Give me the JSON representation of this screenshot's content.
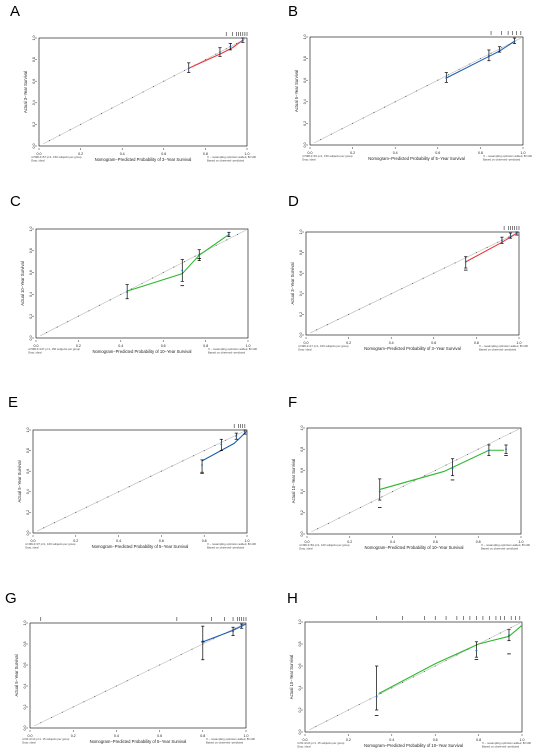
{
  "chart_data": [
    {
      "id": "A",
      "type": "line",
      "panel_label": "A",
      "xlabel": "Nomogram−Predicted Probability of 3−Year Survival",
      "ylabel": "Actual 3−Year Survival",
      "xlim": [
        0,
        1
      ],
      "ylim": [
        0,
        1
      ],
      "xticks": [
        "0.0",
        "0.2",
        "0.4",
        "0.6",
        "0.8",
        "1.0"
      ],
      "yticks": [
        "0.0",
        "0.2",
        "0.4",
        "0.6",
        "0.8",
        "1.0"
      ],
      "line_color": "#e8393b",
      "curve": {
        "x": [
          0.72,
          0.88,
          0.93,
          0.98
        ],
        "y": [
          0.72,
          0.86,
          0.91,
          0.98
        ]
      },
      "points": [
        {
          "x": 0.72,
          "y": 0.72,
          "lo": 0.68,
          "hi": 0.77
        },
        {
          "x": 0.87,
          "y": 0.87,
          "lo": 0.83,
          "hi": 0.91
        },
        {
          "x": 0.92,
          "y": 0.92,
          "lo": 0.89,
          "hi": 0.95
        },
        {
          "x": 0.98,
          "y": 0.98,
          "lo": 0.96,
          "hi": 1.0
        }
      ],
      "crosses": [],
      "rug": [
        0.9,
        0.93,
        0.95,
        0.96,
        0.97,
        0.98,
        0.99,
        1.0
      ],
      "note_left": [
        "n=598 d=57 p=1, 150 subjects per group",
        "Gray: ideal"
      ],
      "note_right": [
        "X − resampling optimism added, B=100",
        "Based on observed−predicted"
      ]
    },
    {
      "id": "B",
      "type": "line",
      "panel_label": "B",
      "xlabel": "Nomogram−Predicted Probability of 5−Year Survival",
      "ylabel": "Actual 5−Year Survival",
      "xlim": [
        0,
        1
      ],
      "ylim": [
        0,
        1
      ],
      "xticks": [
        "0.0",
        "0.2",
        "0.4",
        "0.6",
        "0.8",
        "1.0"
      ],
      "yticks": [
        "0.0",
        "0.2",
        "0.4",
        "0.6",
        "0.8",
        "1.0"
      ],
      "line_color": "#1f5fb4",
      "curve": {
        "x": [
          0.64,
          0.84,
          0.89,
          0.96
        ],
        "y": [
          0.62,
          0.82,
          0.87,
          0.96
        ]
      },
      "points": [
        {
          "x": 0.64,
          "y": 0.62,
          "lo": 0.58,
          "hi": 0.67
        },
        {
          "x": 0.84,
          "y": 0.83,
          "lo": 0.78,
          "hi": 0.88
        },
        {
          "x": 0.89,
          "y": 0.88,
          "lo": 0.86,
          "hi": 0.91
        },
        {
          "x": 0.96,
          "y": 0.96,
          "lo": 0.94,
          "hi": 0.99
        }
      ],
      "crosses": [],
      "rug": [
        0.85,
        0.9,
        0.93,
        0.95,
        0.97,
        0.99
      ],
      "note_left": [
        "n=598 d=91 p=1, 150 subjects per group",
        "Gray: ideal"
      ],
      "note_right": [
        "X − resampling optimism added, B=100",
        "Based on observed−predicted"
      ]
    },
    {
      "id": "C",
      "type": "line",
      "panel_label": "C",
      "xlabel": "Nomogram−Predicted Probability of 10−Year Survival",
      "ylabel": "Actual 10−Year Survival",
      "xlim": [
        0,
        1
      ],
      "ylim": [
        0,
        1
      ],
      "xticks": [
        "0.0",
        "0.2",
        "0.4",
        "0.6",
        "0.8",
        "1.0"
      ],
      "yticks": [
        "0.0",
        "0.2",
        "0.4",
        "0.6",
        "0.8",
        "1.0"
      ],
      "line_color": "#2eb82e",
      "curve": {
        "x": [
          0.43,
          0.69,
          0.77,
          0.91
        ],
        "y": [
          0.43,
          0.59,
          0.76,
          0.95
        ]
      },
      "points": [
        {
          "x": 0.43,
          "y": 0.42,
          "lo": 0.36,
          "hi": 0.49
        },
        {
          "x": 0.69,
          "y": 0.62,
          "lo": 0.52,
          "hi": 0.72
        },
        {
          "x": 0.77,
          "y": 0.76,
          "lo": 0.71,
          "hi": 0.81
        },
        {
          "x": 0.91,
          "y": 0.95,
          "lo": 0.93,
          "hi": 0.97
        }
      ],
      "crosses": [
        {
          "x": 0.69,
          "y": 0.48
        },
        {
          "x": 0.77,
          "y": 0.73
        }
      ],
      "rug": [],
      "note_left": [
        "n=598 d=137 p=1, 150 subjects per group",
        "Gray: ideal"
      ],
      "note_right": [
        "X − resampling optimism added, B=100",
        "Based on observed−predicted"
      ]
    },
    {
      "id": "D",
      "type": "line",
      "panel_label": "D",
      "xlabel": "Nomogram−Predicted Probability of 3−Year Survival",
      "ylabel": "Actual 3−Year Survival",
      "xlim": [
        0,
        1
      ],
      "ylim": [
        0,
        1
      ],
      "xticks": [
        "0.0",
        "0.2",
        "0.4",
        "0.6",
        "0.8",
        "1.0"
      ],
      "yticks": [
        "0.0",
        "0.2",
        "0.4",
        "0.6",
        "0.8",
        "1.0"
      ],
      "line_color": "#e8393b",
      "curve": {
        "x": [
          0.75,
          0.92,
          0.96,
          0.99
        ],
        "y": [
          0.71,
          0.9,
          0.95,
          0.99
        ]
      },
      "points": [
        {
          "x": 0.75,
          "y": 0.71,
          "lo": 0.65,
          "hi": 0.76
        },
        {
          "x": 0.92,
          "y": 0.92,
          "lo": 0.89,
          "hi": 0.95
        },
        {
          "x": 0.96,
          "y": 0.96,
          "lo": 0.94,
          "hi": 0.99
        },
        {
          "x": 0.99,
          "y": 0.99,
          "lo": 0.97,
          "hi": 1.0
        }
      ],
      "crosses": [
        {
          "x": 0.75,
          "y": 0.63
        }
      ],
      "rug": [
        0.93,
        0.95,
        0.96,
        0.97,
        0.98,
        0.99,
        1.0
      ],
      "note_left": [
        "n=399 d=17 p=1, 100 subjects per group",
        "Gray: ideal"
      ],
      "note_right": [
        "X − resampling optimism added, B=100",
        "Based on observed−predicted"
      ]
    },
    {
      "id": "E",
      "type": "line",
      "panel_label": "E",
      "xlabel": "Nomogram−Predicted Probability of 5−Year Survival",
      "ylabel": "Actual 5−Year Survival",
      "xlim": [
        0,
        1
      ],
      "ylim": [
        0,
        1
      ],
      "xticks": [
        "0.0",
        "0.2",
        "0.4",
        "0.6",
        "0.8",
        "1.0"
      ],
      "yticks": [
        "0.0",
        "0.2",
        "0.4",
        "0.6",
        "0.8",
        "1.0"
      ],
      "line_color": "#1f5fb4",
      "curve": {
        "x": [
          0.79,
          0.94,
          0.97,
          1.0
        ],
        "y": [
          0.7,
          0.87,
          0.93,
          0.99
        ]
      },
      "points": [
        {
          "x": 0.79,
          "y": 0.66,
          "lo": 0.59,
          "hi": 0.71
        },
        {
          "x": 0.88,
          "y": 0.86,
          "lo": 0.8,
          "hi": 0.91
        },
        {
          "x": 0.95,
          "y": 0.94,
          "lo": 0.91,
          "hi": 0.97
        },
        {
          "x": 0.99,
          "y": 0.98,
          "lo": 0.96,
          "hi": 1.0
        }
      ],
      "crosses": [
        {
          "x": 0.79,
          "y": 0.58
        }
      ],
      "rug": [
        0.94,
        0.96,
        0.97,
        0.98,
        0.99
      ],
      "note_left": [
        "n=399 d=37 p=1, 100 subjects per group",
        "Gray: ideal"
      ],
      "note_right": [
        "X − resampling optimism added, B=100",
        "Based on observed−predicted"
      ]
    },
    {
      "id": "F",
      "type": "line",
      "panel_label": "F",
      "xlabel": "Nomogram−Predicted Probability of 10−Year Survival",
      "ylabel": "Actual 10−Year Survival",
      "xlim": [
        0,
        1
      ],
      "ylim": [
        0,
        1
      ],
      "xticks": [
        "0.0",
        "0.2",
        "0.4",
        "0.6",
        "0.8",
        "1.0"
      ],
      "yticks": [
        "0.0",
        "0.2",
        "0.4",
        "0.6",
        "0.8",
        "1.0"
      ],
      "line_color": "#2eb82e",
      "curve": {
        "x": [
          0.34,
          0.64,
          0.85,
          0.92
        ],
        "y": [
          0.42,
          0.59,
          0.79,
          0.79
        ]
      },
      "points": [
        {
          "x": 0.34,
          "y": 0.4,
          "lo": 0.32,
          "hi": 0.52
        },
        {
          "x": 0.68,
          "y": 0.62,
          "lo": 0.55,
          "hi": 0.71
        },
        {
          "x": 0.85,
          "y": 0.79,
          "lo": 0.74,
          "hi": 0.84
        },
        {
          "x": 0.93,
          "y": 0.8,
          "lo": 0.76,
          "hi": 0.84
        }
      ],
      "crosses": [
        {
          "x": 0.34,
          "y": 0.25
        },
        {
          "x": 0.68,
          "y": 0.51
        },
        {
          "x": 0.93,
          "y": 0.74
        }
      ],
      "rug": [],
      "note_left": [
        "n=399 d=81 p=1, 100 subjects per group",
        "Gray: ideal"
      ],
      "note_right": [
        "X − resampling optimism added, B=100",
        "Based on observed−predicted"
      ]
    },
    {
      "id": "G",
      "type": "line",
      "panel_label": "G",
      "xlabel": "Nomogram−Predicted Probability of 5−Year Survival",
      "ylabel": "Actual 5−Year Survival",
      "xlim": [
        0,
        1
      ],
      "ylim": [
        0,
        1
      ],
      "xticks": [
        "0.0",
        "0.2",
        "0.4",
        "0.6",
        "0.8",
        "1.0"
      ],
      "yticks": [
        "0.0",
        "0.2",
        "0.4",
        "0.6",
        "0.8",
        "1.0"
      ],
      "line_color": "#1f5fb4",
      "curve": {
        "x": [
          0.8,
          0.94,
          0.98,
          1.0
        ],
        "y": [
          0.82,
          0.93,
          0.97,
          0.99
        ]
      },
      "points": [
        {
          "x": 0.8,
          "y": 0.83,
          "lo": 0.65,
          "hi": 0.97
        },
        {
          "x": 0.94,
          "y": 0.92,
          "lo": 0.88,
          "hi": 0.96
        },
        {
          "x": 0.98,
          "y": 0.97,
          "lo": 0.95,
          "hi": 0.99
        }
      ],
      "crosses": [
        {
          "x": 0.8,
          "y": 0.82
        }
      ],
      "rug": [
        0.05,
        0.68,
        0.84,
        0.9,
        0.94,
        0.96,
        0.97,
        0.98,
        0.99,
        1.0
      ],
      "note_left": [
        "n=60 d=14 p=1, 15 subjects per group",
        "Gray: ideal"
      ],
      "note_right": [
        "X − resampling optimism added, B=100",
        "Based on observed−predicted"
      ]
    },
    {
      "id": "H",
      "type": "line",
      "panel_label": "H",
      "xlabel": "Nomogram−Predicted Probability of 10−Year Survival",
      "ylabel": "Actual 10−Year Survival",
      "xlim": [
        0,
        1
      ],
      "ylim": [
        0,
        1
      ],
      "xticks": [
        "0.0",
        "0.2",
        "0.4",
        "0.6",
        "0.8",
        "1.0"
      ],
      "yticks": [
        "0.0",
        "0.2",
        "0.4",
        "0.6",
        "0.8",
        "1.0"
      ],
      "line_color": "#2eb82e",
      "curve": {
        "x": [
          0.34,
          0.6,
          0.8,
          0.94,
          1.0
        ],
        "y": [
          0.35,
          0.62,
          0.8,
          0.87,
          0.97
        ]
      },
      "points": [
        {
          "x": 0.33,
          "y": 0.32,
          "lo": 0.2,
          "hi": 0.6
        },
        {
          "x": 0.79,
          "y": 0.74,
          "lo": 0.68,
          "hi": 0.82
        },
        {
          "x": 0.94,
          "y": 0.88,
          "lo": 0.83,
          "hi": 0.93
        }
      ],
      "crosses": [
        {
          "x": 0.33,
          "y": 0.15
        },
        {
          "x": 0.79,
          "y": 0.66
        },
        {
          "x": 0.94,
          "y": 0.71
        }
      ],
      "rug": [
        0.33,
        0.45,
        0.55,
        0.6,
        0.65,
        0.7,
        0.73,
        0.76,
        0.79,
        0.82,
        0.85,
        0.88,
        0.9,
        0.92,
        0.95,
        0.97,
        0.99
      ],
      "note_left": [
        "n=60 d=24 p=1, 15 subjects per group",
        "Gray: ideal"
      ],
      "note_right": [
        "X − resampling optimism added, B=100",
        "Based on observed−predicted"
      ]
    }
  ]
}
